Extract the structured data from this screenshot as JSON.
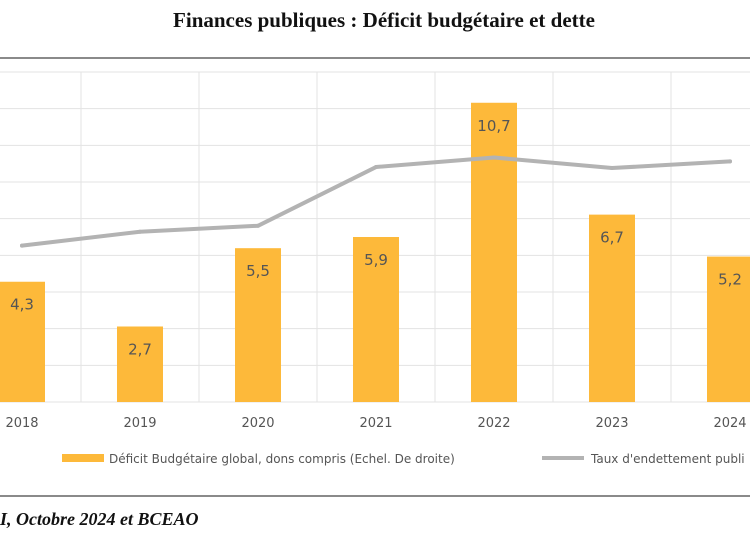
{
  "title": "Finances publiques : Déficit budgétaire et dette",
  "source": "I, Octobre 2024 et BCEAO",
  "chart_data": {
    "type": "bar",
    "categories": [
      "2018",
      "2019",
      "2020",
      "2021",
      "2022",
      "2023",
      "2024"
    ],
    "series": [
      {
        "name": "Déficit Budgétaire global, dons compris (Echel. De droite)",
        "type": "bar",
        "color": "#FDB93A",
        "values": [
          4.3,
          2.7,
          5.5,
          5.9,
          10.7,
          6.7,
          5.2
        ],
        "labels": [
          "4,3",
          "2,7",
          "5,5",
          "5,9",
          "10,7",
          "6,7",
          "5,2"
        ]
      },
      {
        "name": "Taux d'endettement publi",
        "type": "line",
        "color": "#B3B3B3",
        "values": [
          47.4,
          51.6,
          53.4,
          71.2,
          74.1,
          70.9,
          72.9
        ]
      }
    ],
    "ylim_bars": [
      0,
      11.8
    ],
    "ylim_line": [
      0,
      100
    ],
    "grid": true,
    "legend_position": "bottom",
    "data_labels": true
  }
}
